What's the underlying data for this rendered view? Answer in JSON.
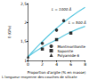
{
  "chart_data": {
    "type": "scatter",
    "x_label": "Proportion d'argile (% en masse)",
    "y_label": "E (GPa)",
    "xlim": [
      0,
      8
    ],
    "xticks": [
      0,
      2,
      4,
      6,
      8
    ],
    "ylim": [
      1,
      2.5
    ],
    "yticks": [
      1,
      {
        "value": 1.5,
        "label": "1,5"
      },
      2,
      {
        "value": 2.5,
        "label": "2,5"
      }
    ],
    "legend": "lower right",
    "annotations": [
      "L longueur moyenne des couches de silicate"
    ],
    "series": [
      {
        "name": "L = 1000 Å",
        "type": "line",
        "color": "#5bc8e0",
        "x": [
          0,
          2,
          4,
          6,
          8
        ],
        "values": [
          1.1,
          1.5,
          1.85,
          2.15,
          2.4
        ]
      },
      {
        "name": "L = 500 Å",
        "type": "line",
        "color": "#5bc8e0",
        "x": [
          0,
          2,
          4,
          6,
          8
        ],
        "values": [
          1.1,
          1.35,
          1.55,
          1.75,
          1.9
        ]
      },
      {
        "name": "Montmorillonite",
        "type": "scatter",
        "marker": "circle",
        "color": "#000000",
        "x": [
          2,
          4,
          5
        ],
        "values": [
          1.45,
          1.8,
          2.05
        ]
      },
      {
        "name": "Saponite",
        "type": "scatter",
        "marker": "square",
        "color": "#000000",
        "x": [
          2,
          4,
          6
        ],
        "values": [
          1.3,
          1.55,
          1.72
        ]
      },
      {
        "name": "Polyamide 6",
        "type": "scatter",
        "marker": "triangle",
        "color": "#000000",
        "x": [
          0
        ],
        "values": [
          1.1
        ]
      }
    ]
  }
}
